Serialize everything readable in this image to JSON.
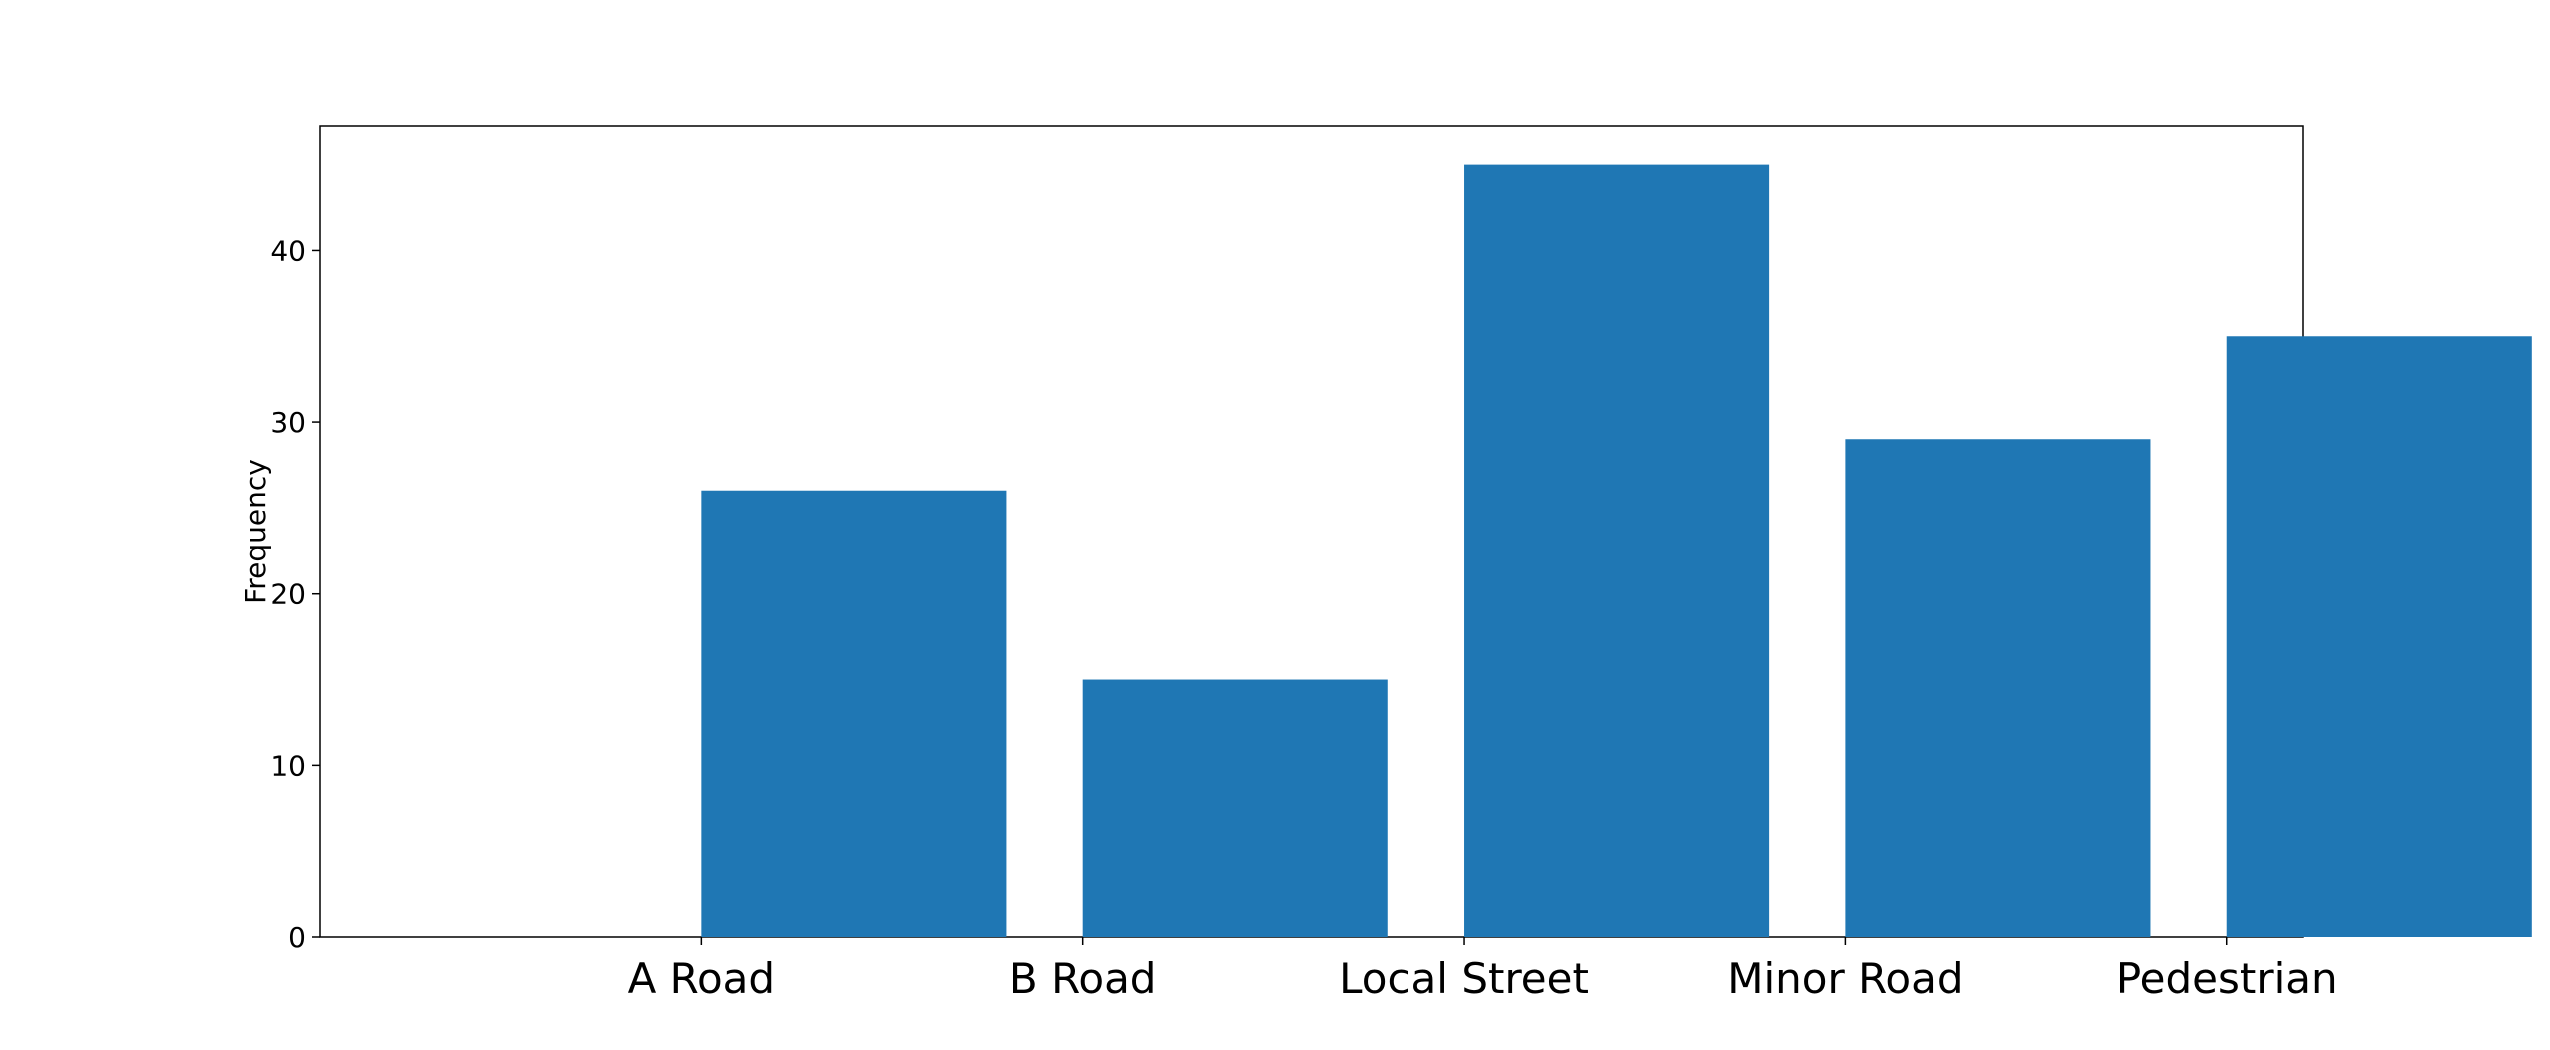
{
  "chart_data": {
    "type": "bar",
    "title": "",
    "xlabel": "",
    "ylabel": "Frequency",
    "categories": [
      "A Road",
      "B Road",
      "Local Street",
      "Minor Road",
      "Pedestrian"
    ],
    "values": [
      26,
      15,
      45,
      29,
      35
    ],
    "y_ticks": [
      0,
      10,
      20,
      30,
      40
    ],
    "ylim": [
      0,
      47.25
    ],
    "xlim": [
      -1,
      4.2
    ],
    "bar_alignment": "edge-at-category",
    "grid": false,
    "legend": "none",
    "bar_color": "#1f77b4"
  }
}
